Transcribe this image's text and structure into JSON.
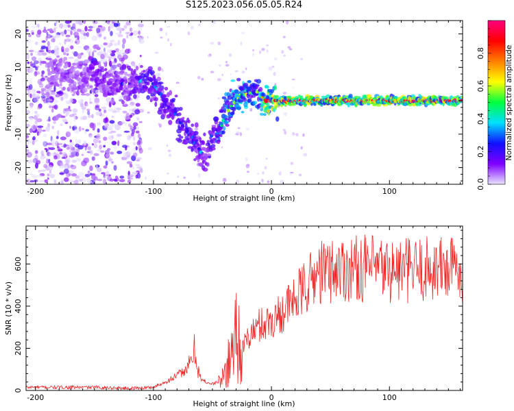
{
  "title": "S125.2023.056.05.05.R24",
  "chart_data": [
    {
      "type": "heatmap",
      "title": "S125.2023.056.05.05.R24",
      "xlabel": "Height of straight line (km)",
      "ylabel": "Frequency (Hz)",
      "xlim": [
        -208,
        162
      ],
      "ylim": [
        -25,
        24
      ],
      "xticks": [
        -200,
        -100,
        0,
        100
      ],
      "yticks": [
        -20,
        -10,
        0,
        10,
        20
      ],
      "colorbar": {
        "label": "Normalized spectral amplitude",
        "range": [
          0.0,
          1.0
        ],
        "ticks": [
          0.0,
          0.2,
          0.4,
          0.6,
          0.8
        ],
        "colors": [
          "#e8e4ff",
          "#8000ff",
          "#1010ff",
          "#00e0ff",
          "#00ff40",
          "#ffff00",
          "#ff8000",
          "#ff0000",
          "#ff0080"
        ]
      },
      "ridge": {
        "x": [
          -185,
          -160,
          -150,
          -140,
          -120,
          -110,
          -100,
          -90,
          -80,
          -70,
          -60,
          -55,
          -50,
          -45,
          -40,
          -35,
          -30,
          -25,
          -20,
          -15,
          -10,
          -5,
          0,
          20,
          60,
          100,
          162
        ],
        "frequency": [
          8,
          7,
          9,
          5,
          5,
          6,
          5,
          0,
          -5,
          -10,
          -15,
          -17,
          -9,
          -10,
          -5,
          -2,
          0,
          2,
          2,
          3,
          2,
          0,
          0,
          0,
          0,
          0,
          0
        ],
        "amplitude": [
          0.15,
          0.15,
          0.2,
          0.2,
          0.2,
          0.3,
          0.3,
          0.25,
          0.3,
          0.3,
          0.25,
          0.2,
          0.35,
          0.4,
          0.45,
          0.5,
          0.55,
          0.6,
          0.55,
          0.5,
          0.5,
          0.9,
          0.9,
          0.9,
          0.9,
          0.9,
          0.9
        ]
      }
    },
    {
      "type": "line",
      "xlabel": "Height of straight line (km)",
      "ylabel": "SNR (10 * v/v)",
      "xlim": [
        -208,
        162
      ],
      "ylim": [
        0,
        780
      ],
      "xticks": [
        -200,
        -100,
        0,
        100
      ],
      "yticks": [
        0,
        200,
        400,
        600
      ],
      "color": "#ee2222",
      "trend": {
        "x": [
          -208,
          -150,
          -120,
          -100,
          -90,
          -80,
          -70,
          -65,
          -60,
          -50,
          -42,
          -35,
          -30,
          -25,
          -20,
          -10,
          0,
          10,
          20,
          30,
          40,
          60,
          80,
          100,
          120,
          140,
          162
        ],
        "y": [
          15,
          15,
          10,
          15,
          40,
          70,
          110,
          190,
          50,
          30,
          50,
          150,
          300,
          180,
          250,
          310,
          330,
          380,
          430,
          500,
          560,
          580,
          580,
          570,
          570,
          580,
          580
        ]
      }
    }
  ]
}
